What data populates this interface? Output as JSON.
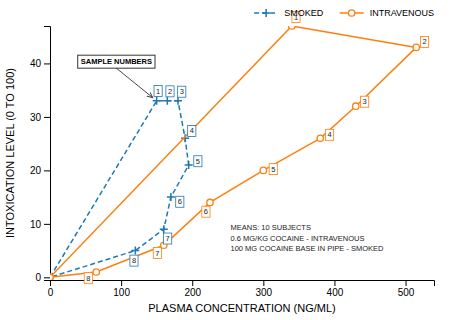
{
  "chart_data": {
    "type": "line",
    "xlabel": "PLASMA CONCENTRATION (NG/ML)",
    "ylabel": "INTOXICATION LEVEL (0 TO 100)",
    "xlim": [
      0,
      540
    ],
    "ylim": [
      -0.5,
      47
    ],
    "xticks": [
      0,
      100,
      200,
      300,
      400,
      500
    ],
    "yticks": [
      0,
      10,
      20,
      30,
      40
    ],
    "grid": false,
    "legend": "top",
    "series": [
      {
        "name": "SMOKED",
        "line_style": "dashed",
        "marker": "plus",
        "x": [
          0,
          150,
          165,
          180,
          190,
          195,
          170,
          160,
          120,
          0
        ],
        "values": [
          0,
          33,
          33,
          33,
          26,
          21,
          15,
          9,
          5,
          0
        ],
        "point_labels": [
          null,
          "1",
          "2",
          "3",
          "4",
          "5",
          "6",
          "7",
          "8",
          null
        ]
      },
      {
        "name": "INTRAVENOUS",
        "line_style": "solid",
        "marker": "circle",
        "x": [
          0,
          340,
          515,
          430,
          380,
          300,
          225,
          160,
          65,
          0
        ],
        "values": [
          0,
          47,
          43,
          32,
          26,
          20,
          14,
          6,
          1,
          0
        ],
        "point_labels": [
          null,
          "1",
          "2",
          "3",
          "4",
          "5",
          "6",
          "7",
          "8",
          null
        ]
      }
    ],
    "sample_numbers_label": "SAMPLE NUMBERS",
    "annotation": [
      "MEANS: 10 SUBJECTS",
      "0.6 MG/KG COCAINE - INTRAVENOUS",
      "100 MG COCAINE BASE IN PIPE - SMOKED"
    ]
  }
}
